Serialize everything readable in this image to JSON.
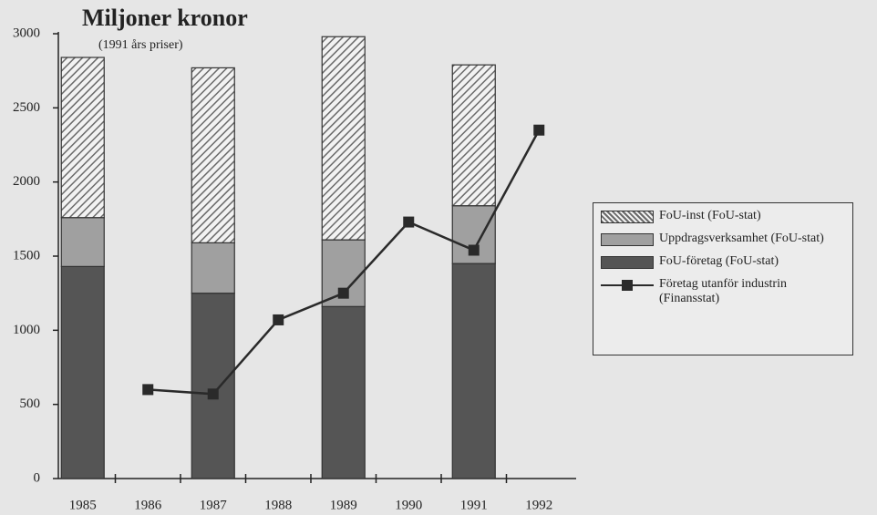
{
  "chart_data": {
    "type": "bar",
    "stacked": true,
    "title": "Miljoner kronor",
    "subtitle": "(1991 års priser)",
    "categories": [
      "1985",
      "1986",
      "1987",
      "1988",
      "1989",
      "1990",
      "1991",
      "1992"
    ],
    "series": [
      {
        "name": "FoU-företag (FoU-stat)",
        "color": "#555555",
        "values": [
          1430,
          null,
          1250,
          null,
          1160,
          null,
          1450,
          null
        ]
      },
      {
        "name": "Uppdragsverksamhet (FoU-stat)",
        "color": "#a0a0a0",
        "values": [
          330,
          null,
          340,
          null,
          450,
          null,
          390,
          null
        ]
      },
      {
        "name": "FoU-inst (FoU-stat)",
        "color": "#6a6a6a",
        "pattern": "hatch",
        "values": [
          1080,
          null,
          1180,
          null,
          1370,
          null,
          950,
          null
        ]
      },
      {
        "name": "Företag utanför industrin (Finansstat)",
        "type": "line",
        "color": "#2a2a2a",
        "values": [
          null,
          600,
          570,
          1070,
          1250,
          1730,
          1540,
          2350
        ]
      }
    ],
    "ylim": [
      0,
      3000
    ],
    "yticks": [
      0,
      500,
      1000,
      1500,
      2000,
      2500,
      3000
    ]
  }
}
